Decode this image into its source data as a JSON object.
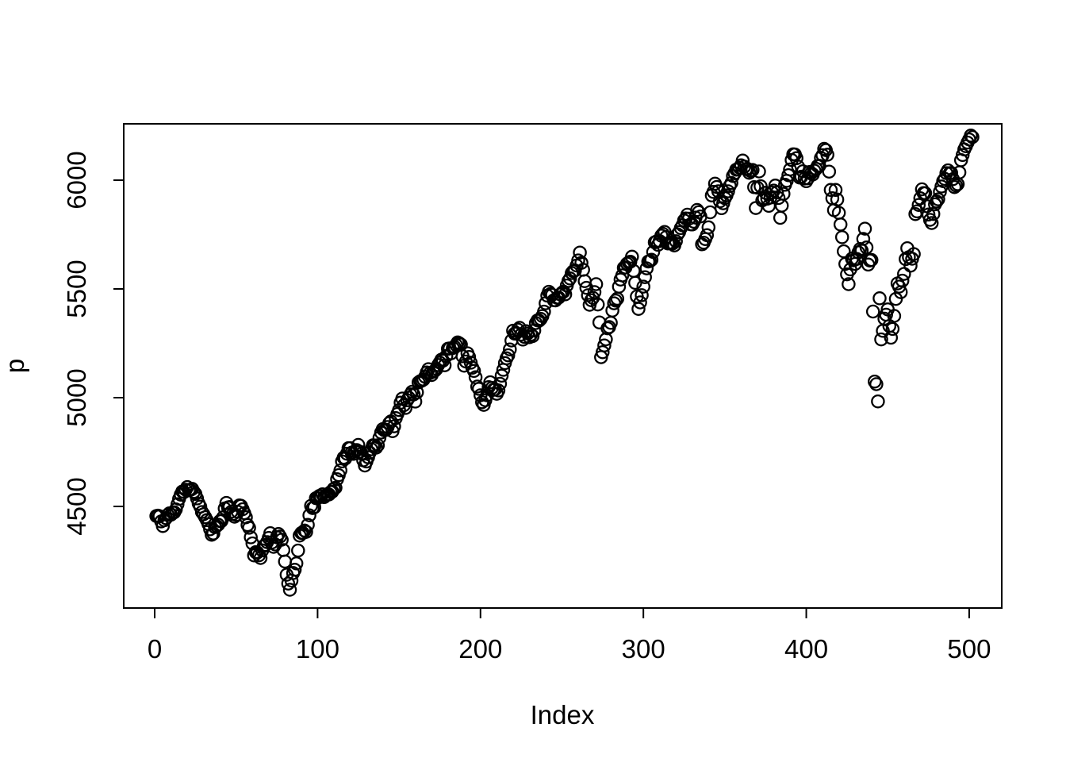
{
  "figure": {
    "background_color": "#ffffff",
    "foreground_color": "#000000"
  },
  "chart_data": {
    "type": "scatter",
    "title": "",
    "xlabel": "Index",
    "ylabel": "p",
    "marker": "open-circle",
    "grid": false,
    "legend": false,
    "n_points": 502,
    "x_ticks": [
      0,
      100,
      200,
      300,
      400,
      500
    ],
    "y_ticks": [
      4500,
      5000,
      5500,
      6000
    ],
    "xlim": [
      -19,
      520
    ],
    "ylim": [
      4033,
      6259
    ],
    "anchors": [
      [
        1,
        4456
      ],
      [
        3,
        4455
      ],
      [
        5,
        4410
      ],
      [
        7,
        4446
      ],
      [
        9,
        4468
      ],
      [
        12,
        4473
      ],
      [
        14,
        4510
      ],
      [
        16,
        4554
      ],
      [
        18,
        4566
      ],
      [
        20,
        4589
      ],
      [
        22,
        4576
      ],
      [
        24,
        4567
      ],
      [
        26,
        4537
      ],
      [
        28,
        4499
      ],
      [
        30,
        4464
      ],
      [
        32,
        4437
      ],
      [
        35,
        4370
      ],
      [
        37,
        4405
      ],
      [
        39,
        4416
      ],
      [
        41,
        4433
      ],
      [
        44,
        4516
      ],
      [
        46,
        4497
      ],
      [
        48,
        4465
      ],
      [
        50,
        4461
      ],
      [
        52,
        4505
      ],
      [
        54,
        4487
      ],
      [
        56,
        4450
      ],
      [
        58,
        4402
      ],
      [
        60,
        4330
      ],
      [
        61,
        4275
      ],
      [
        63,
        4288
      ],
      [
        65,
        4263
      ],
      [
        67,
        4318
      ],
      [
        69,
        4336
      ],
      [
        71,
        4377
      ],
      [
        73,
        4314
      ],
      [
        75,
        4358
      ],
      [
        76,
        4373
      ],
      [
        78,
        4347
      ],
      [
        80,
        4247
      ],
      [
        81,
        4186
      ],
      [
        83,
        4117
      ],
      [
        85,
        4194
      ],
      [
        87,
        4238
      ],
      [
        89,
        4366
      ],
      [
        91,
        4378
      ],
      [
        93,
        4383
      ],
      [
        94,
        4415
      ],
      [
        96,
        4503
      ],
      [
        98,
        4496
      ],
      [
        99,
        4538
      ],
      [
        101,
        4548
      ],
      [
        103,
        4556
      ],
      [
        105,
        4550
      ],
      [
        107,
        4555
      ],
      [
        109,
        4568
      ],
      [
        111,
        4586
      ],
      [
        113,
        4644
      ],
      [
        115,
        4707
      ],
      [
        117,
        4720
      ],
      [
        119,
        4768
      ],
      [
        121,
        4747
      ],
      [
        123,
        4754
      ],
      [
        125,
        4783
      ],
      [
        127,
        4743
      ],
      [
        129,
        4688
      ],
      [
        131,
        4726
      ],
      [
        133,
        4763
      ],
      [
        135,
        4780
      ],
      [
        137,
        4781
      ],
      [
        139,
        4840
      ],
      [
        141,
        4850
      ],
      [
        143,
        4865
      ],
      [
        145,
        4891
      ],
      [
        146,
        4846
      ],
      [
        148,
        4906
      ],
      [
        150,
        4943
      ],
      [
        152,
        4996
      ],
      [
        154,
        4953
      ],
      [
        156,
        5000
      ],
      [
        158,
        5027
      ],
      [
        160,
        4982
      ],
      [
        162,
        5070
      ],
      [
        164,
        5078
      ],
      [
        166,
        5096
      ],
      [
        168,
        5131
      ],
      [
        170,
        5104
      ],
      [
        172,
        5124
      ],
      [
        174,
        5150
      ],
      [
        176,
        5175
      ],
      [
        178,
        5149
      ],
      [
        180,
        5225
      ],
      [
        182,
        5204
      ],
      [
        184,
        5234
      ],
      [
        186,
        5254
      ],
      [
        188,
        5244
      ],
      [
        190,
        5147
      ],
      [
        192,
        5204
      ],
      [
        194,
        5161
      ],
      [
        196,
        5123
      ],
      [
        198,
        5051
      ],
      [
        200,
        5011
      ],
      [
        202,
        4967
      ],
      [
        204,
        5011
      ],
      [
        206,
        5071
      ],
      [
        208,
        5036
      ],
      [
        210,
        5018
      ],
      [
        212,
        5064
      ],
      [
        214,
        5128
      ],
      [
        216,
        5181
      ],
      [
        218,
        5222
      ],
      [
        220,
        5308
      ],
      [
        222,
        5297
      ],
      [
        224,
        5321
      ],
      [
        226,
        5267
      ],
      [
        228,
        5306
      ],
      [
        230,
        5278
      ],
      [
        232,
        5283
      ],
      [
        234,
        5343
      ],
      [
        236,
        5354
      ],
      [
        238,
        5375
      ],
      [
        240,
        5434
      ],
      [
        242,
        5487
      ],
      [
        244,
        5473
      ],
      [
        246,
        5447
      ],
      [
        248,
        5460
      ],
      [
        250,
        5482
      ],
      [
        252,
        5475
      ],
      [
        254,
        5537
      ],
      [
        256,
        5573
      ],
      [
        258,
        5585
      ],
      [
        260,
        5631
      ],
      [
        261,
        5667
      ],
      [
        263,
        5588
      ],
      [
        265,
        5505
      ],
      [
        267,
        5427
      ],
      [
        269,
        5459
      ],
      [
        271,
        5522
      ],
      [
        273,
        5346
      ],
      [
        274,
        5186
      ],
      [
        276,
        5240
      ],
      [
        278,
        5319
      ],
      [
        280,
        5344
      ],
      [
        282,
        5434
      ],
      [
        284,
        5455
      ],
      [
        286,
        5543
      ],
      [
        288,
        5597
      ],
      [
        290,
        5616
      ],
      [
        292,
        5625
      ],
      [
        293,
        5648
      ],
      [
        295,
        5528
      ],
      [
        297,
        5408
      ],
      [
        299,
        5471
      ],
      [
        301,
        5554
      ],
      [
        303,
        5626
      ],
      [
        305,
        5634
      ],
      [
        307,
        5714
      ],
      [
        309,
        5703
      ],
      [
        311,
        5745
      ],
      [
        313,
        5762
      ],
      [
        315,
        5709
      ],
      [
        317,
        5713
      ],
      [
        319,
        5700
      ],
      [
        321,
        5751
      ],
      [
        323,
        5780
      ],
      [
        325,
        5815
      ],
      [
        327,
        5841
      ],
      [
        329,
        5797
      ],
      [
        331,
        5809
      ],
      [
        333,
        5863
      ],
      [
        335,
        5833
      ],
      [
        336,
        5705
      ],
      [
        338,
        5729
      ],
      [
        340,
        5783
      ],
      [
        342,
        5930
      ],
      [
        344,
        5984
      ],
      [
        346,
        5949
      ],
      [
        348,
        5871
      ],
      [
        350,
        5917
      ],
      [
        352,
        5949
      ],
      [
        354,
        5987
      ],
      [
        356,
        6032
      ],
      [
        358,
        6050
      ],
      [
        360,
        6068
      ],
      [
        361,
        6090
      ],
      [
        363,
        6051
      ],
      [
        365,
        6034
      ],
      [
        367,
        6047
      ],
      [
        369,
        5872
      ],
      [
        371,
        6040
      ],
      [
        373,
        5907
      ],
      [
        375,
        5942
      ],
      [
        377,
        5882
      ],
      [
        379,
        5943
      ],
      [
        381,
        5975
      ],
      [
        383,
        5918
      ],
      [
        384,
        5827
      ],
      [
        386,
        5937
      ],
      [
        388,
        5997
      ],
      [
        390,
        6049
      ],
      [
        392,
        6119
      ],
      [
        394,
        6101
      ],
      [
        396,
        6012
      ],
      [
        398,
        6041
      ],
      [
        400,
        5995
      ],
      [
        402,
        6038
      ],
      [
        404,
        6026
      ],
      [
        406,
        6052
      ],
      [
        408,
        6066
      ],
      [
        410,
        6115
      ],
      [
        411,
        6144
      ],
      [
        413,
        6117
      ],
      [
        415,
        5955
      ],
      [
        417,
        5862
      ],
      [
        418,
        5955
      ],
      [
        420,
        5850
      ],
      [
        422,
        5738
      ],
      [
        424,
        5615
      ],
      [
        426,
        5522
      ],
      [
        428,
        5639
      ],
      [
        430,
        5615
      ],
      [
        432,
        5668
      ],
      [
        434,
        5677
      ],
      [
        436,
        5777
      ],
      [
        438,
        5612
      ],
      [
        440,
        5633
      ],
      [
        441,
        5396
      ],
      [
        442,
        5074
      ],
      [
        443,
        5062
      ],
      [
        444,
        4983
      ],
      [
        445,
        5457
      ],
      [
        446,
        5268
      ],
      [
        448,
        5363
      ],
      [
        450,
        5406
      ],
      [
        452,
        5276
      ],
      [
        454,
        5376
      ],
      [
        456,
        5525
      ],
      [
        458,
        5485
      ],
      [
        460,
        5569
      ],
      [
        462,
        5687
      ],
      [
        464,
        5607
      ],
      [
        466,
        5660
      ],
      [
        467,
        5844
      ],
      [
        469,
        5886
      ],
      [
        471,
        5958
      ],
      [
        473,
        5940
      ],
      [
        475,
        5842
      ],
      [
        477,
        5803
      ],
      [
        479,
        5889
      ],
      [
        481,
        5912
      ],
      [
        483,
        5971
      ],
      [
        485,
        6006
      ],
      [
        487,
        6045
      ],
      [
        489,
        6033
      ],
      [
        491,
        5968
      ],
      [
        493,
        5982
      ],
      [
        495,
        6092
      ],
      [
        497,
        6141
      ],
      [
        499,
        6173
      ],
      [
        501,
        6205
      ],
      [
        502,
        6198
      ]
    ],
    "render_jitter": 12,
    "render_seed": 42
  }
}
